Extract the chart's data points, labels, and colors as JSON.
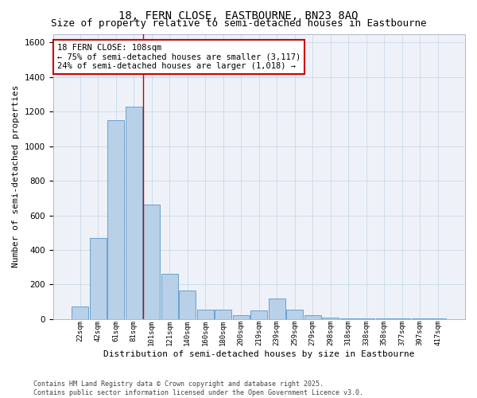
{
  "title": "18, FERN CLOSE, EASTBOURNE, BN23 8AQ",
  "subtitle": "Size of property relative to semi-detached houses in Eastbourne",
  "xlabel": "Distribution of semi-detached houses by size in Eastbourne",
  "ylabel": "Number of semi-detached properties",
  "categories": [
    "22sqm",
    "42sqm",
    "61sqm",
    "81sqm",
    "101sqm",
    "121sqm",
    "140sqm",
    "160sqm",
    "180sqm",
    "200sqm",
    "219sqm",
    "239sqm",
    "259sqm",
    "279sqm",
    "298sqm",
    "318sqm",
    "338sqm",
    "358sqm",
    "377sqm",
    "397sqm",
    "417sqm"
  ],
  "values": [
    75,
    470,
    1150,
    1230,
    660,
    260,
    165,
    55,
    55,
    20,
    50,
    120,
    55,
    20,
    10,
    5,
    5,
    2,
    2,
    2,
    2
  ],
  "bar_color": "#b8d0e8",
  "bar_edge_color": "#5a96c8",
  "grid_color": "#c8d8e8",
  "background_color": "#eef2f8",
  "vline_x": 3.5,
  "vline_color": "#cc0000",
  "annotation_text": "18 FERN CLOSE: 108sqm\n← 75% of semi-detached houses are smaller (3,117)\n24% of semi-detached houses are larger (1,018) →",
  "ylim": [
    0,
    1650
  ],
  "yticks": [
    0,
    200,
    400,
    600,
    800,
    1000,
    1200,
    1400,
    1600
  ],
  "footer_text": "Contains HM Land Registry data © Crown copyright and database right 2025.\nContains public sector information licensed under the Open Government Licence v3.0.",
  "title_fontsize": 10,
  "subtitle_fontsize": 9,
  "xlabel_fontsize": 8,
  "ylabel_fontsize": 8,
  "annot_fontsize": 7.5
}
